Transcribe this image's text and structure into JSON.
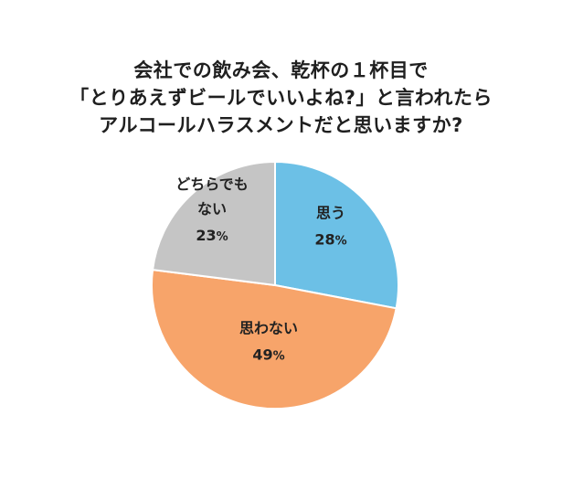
{
  "chart_data": {
    "type": "pie",
    "title_lines": [
      "会社での飲み会、乾杯の１杯目で",
      "「とりあえずビールでいいよね?」と言われたら",
      "アルコールハラスメントだと思いますか?"
    ],
    "unit": "%",
    "start_angle_deg": 0,
    "direction": "clockwise",
    "slices": [
      {
        "label_lines": [
          "思う"
        ],
        "value": 28,
        "color": "#6cc0e6"
      },
      {
        "label_lines": [
          "思わない"
        ],
        "value": 49,
        "color": "#f7a46a"
      },
      {
        "label_lines": [
          "どちらでも",
          "ない"
        ],
        "value": 23,
        "color": "#c5c5c5"
      }
    ],
    "slice_stroke_color": "#ffffff",
    "legend": "none"
  }
}
